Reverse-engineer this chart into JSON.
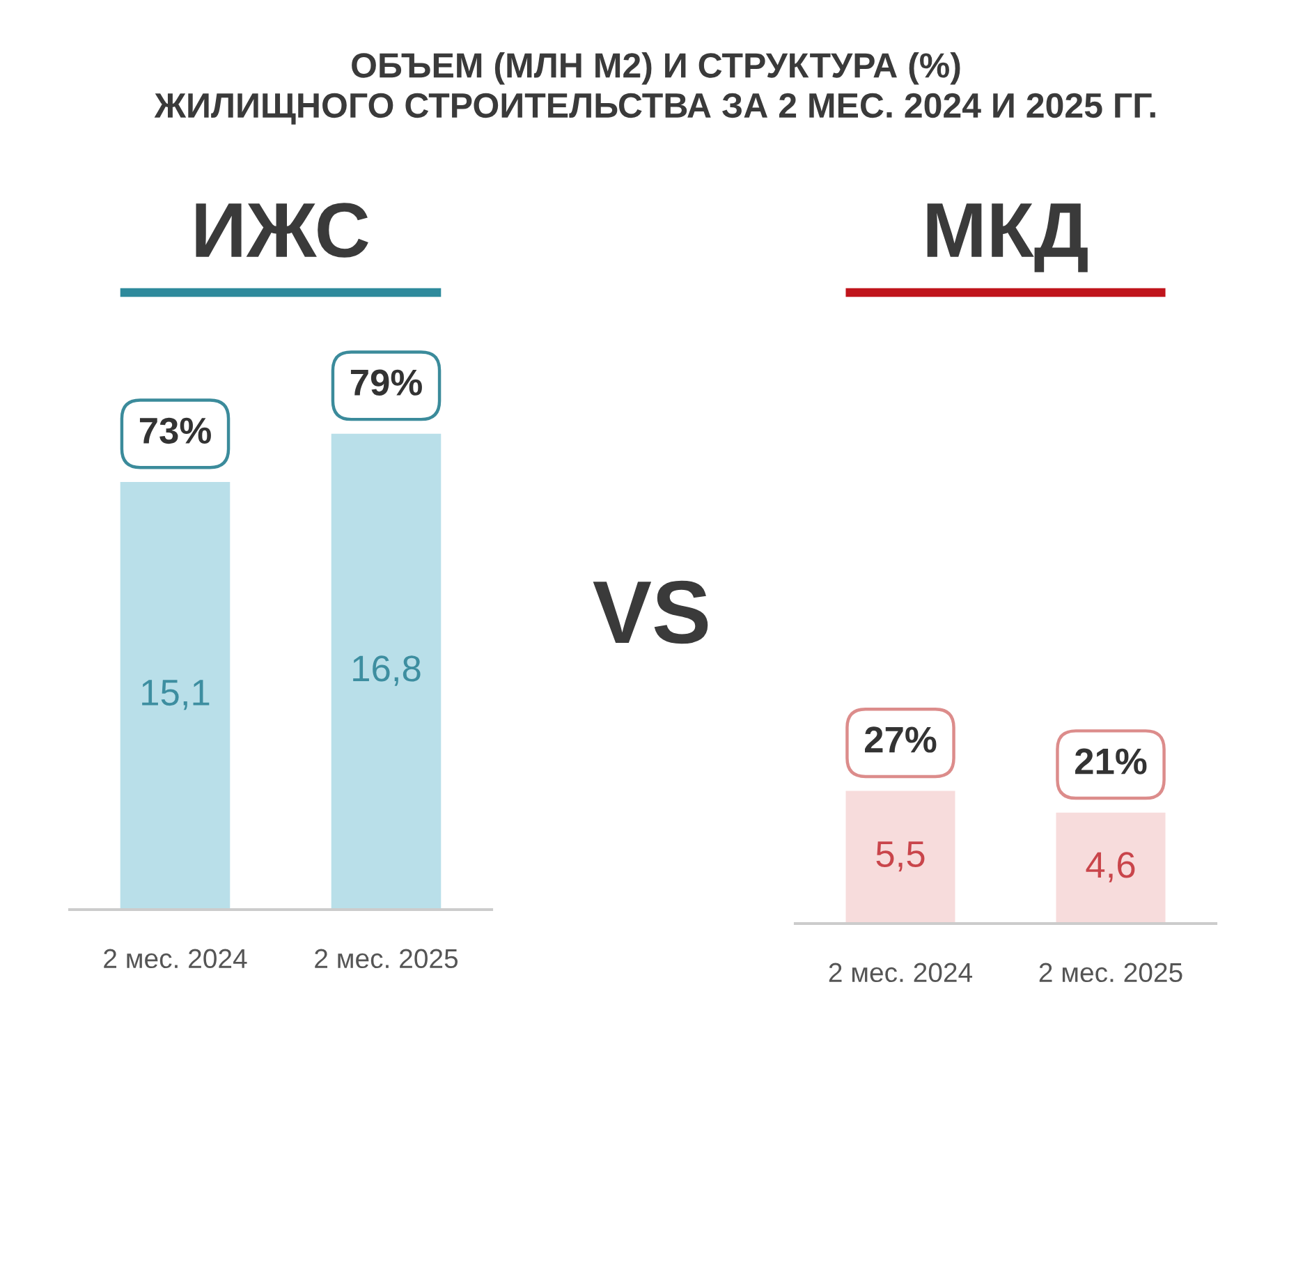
{
  "chart_data": [
    {
      "type": "other",
      "title": "ОБЪЕМ (МЛН М2) И СТРУКТУРА (%)\nЖИЛИЩНОГО СТРОИТЕЛЬСТВА ЗА 2 МЕС. 2024 И 2025 ГГ."
    },
    {
      "type": "bar",
      "title": "ИЖС",
      "categories": [
        "2 мес. 2024",
        "2 мес. 2025"
      ],
      "values": [
        15.1,
        16.8
      ],
      "color": "#b9dfe9",
      "value_labels": [
        "15,1",
        "16,8"
      ],
      "annotations": [
        {
          "text": "73%",
          "x": "2 мес. 2024",
          "y": 15.1
        },
        {
          "text": "79%",
          "x": "2 мес. 2025",
          "y": 16.8
        }
      ],
      "tick_labels": "x"
    },
    {
      "type": "other",
      "title": "VS"
    },
    {
      "type": "bar",
      "title": "МКД",
      "categories": [
        "2 мес. 2024",
        "2 мес. 2025"
      ],
      "values": [
        5.5,
        4.6
      ],
      "color": "#f7dcdc",
      "value_labels": [
        "5,5",
        "4,6"
      ],
      "annotations": [
        {
          "text": "27%",
          "x": "2 мес. 2024",
          "y": 5.5
        },
        {
          "text": "21%",
          "x": "2 мес. 2025",
          "y": 4.6
        }
      ],
      "tick_labels": "x"
    }
  ]
}
